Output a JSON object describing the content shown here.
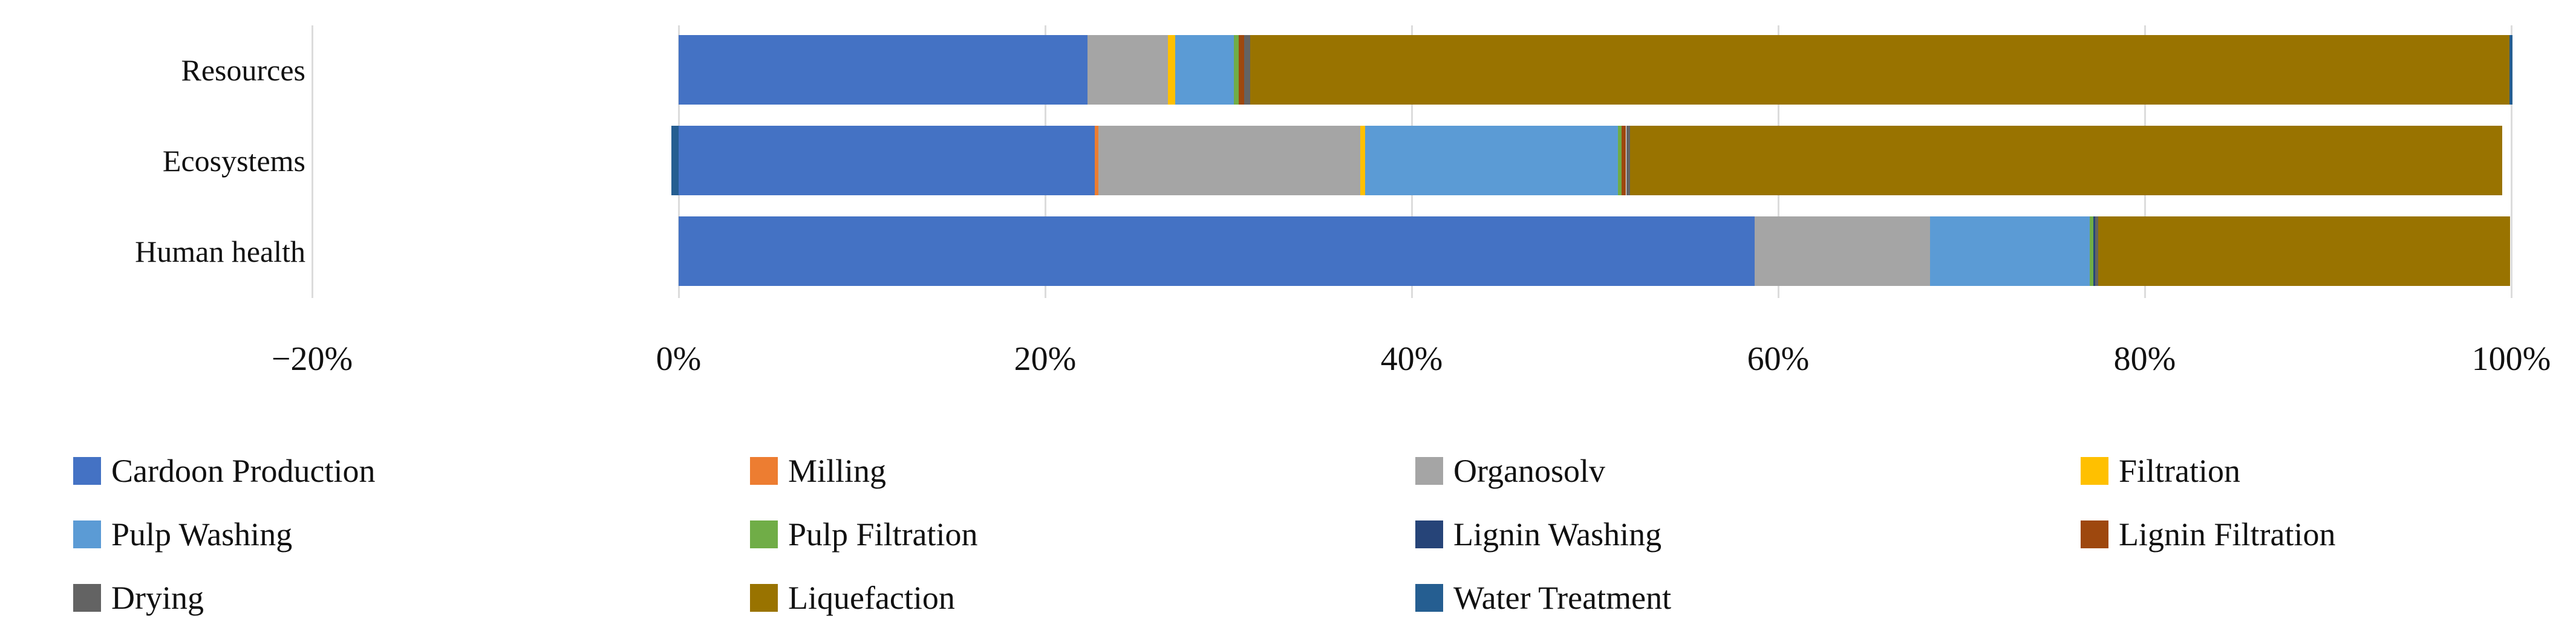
{
  "figure": {
    "background": "#FFFFFF",
    "gridline_color": "#DCDCDC"
  },
  "chart_data": {
    "type": "bar",
    "variant": "horizontal-stacked-100",
    "title": "",
    "xlabel": "",
    "ylabel": "",
    "grid": "vertical gridlines every 20%",
    "legend_position": "bottom",
    "categories": [
      "Resources",
      "Ecosystems",
      "Human health"
    ],
    "x_axis": {
      "min": -20,
      "max": 100,
      "step": 20,
      "unit": "%",
      "tick_labels": [
        "−20%",
        "0%",
        "20%",
        "40%",
        "60%",
        "80%",
        "100%"
      ]
    },
    "series": [
      {
        "name": "Cardoon Production",
        "color": "#4472C4",
        "values": [
          22.3,
          22.7,
          58.7
        ]
      },
      {
        "name": "Milling",
        "color": "#ED7D31",
        "values": [
          0,
          0.2,
          0
        ]
      },
      {
        "name": "Organosolv",
        "color": "#A5A5A5",
        "values": [
          4.4,
          14.3,
          9.6
        ]
      },
      {
        "name": "Filtration",
        "color": "#FFC000",
        "values": [
          0.4,
          0.25,
          0
        ]
      },
      {
        "name": "Pulp Washing",
        "color": "#5B9BD5",
        "values": [
          3.2,
          13.8,
          8.7
        ]
      },
      {
        "name": "Pulp Filtration",
        "color": "#70AD47",
        "values": [
          0.25,
          0.2,
          0.2
        ]
      },
      {
        "name": "Lignin Washing",
        "color": "#264478",
        "values": [
          0,
          0,
          0.1
        ]
      },
      {
        "name": "Lignin Filtration",
        "color": "#9E480E",
        "values": [
          0.3,
          0.25,
          0
        ]
      },
      {
        "name": "Drying",
        "color": "#636363",
        "values": [
          0.35,
          0.2,
          0.15
        ]
      },
      {
        "name": "Liquefaction",
        "color": "#997300",
        "values": [
          68.7,
          47.6,
          22.5
        ]
      },
      {
        "name": "Water Treatment",
        "color": "#255E91",
        "values": [
          0.15,
          -0.4,
          0
        ]
      }
    ]
  }
}
